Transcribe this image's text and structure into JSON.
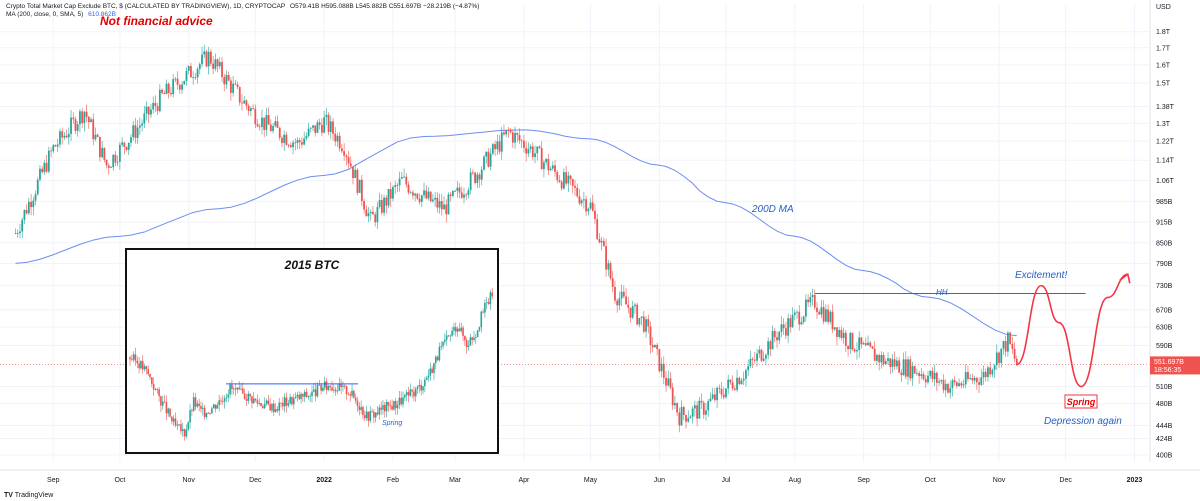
{
  "header": {
    "symbol": "Crypto Total Market Cap Exclude BTC, $ (CALCULATED BY TRADINGVIEW), 1D, CRYPTOCAP",
    "ohlc": "O579.41B H595.088B L545.882B C551.697B −28.219B (−4.87%)",
    "ma_line": "MA (200, close, 0, SMA, 5)",
    "ma_value": "610.862B"
  },
  "watermark": "TradingView",
  "chart_data": {
    "type": "candlestick",
    "currency": "USD",
    "price_scale": "log",
    "y_ticks": [
      "1.8T",
      "1.7T",
      "1.6T",
      "1.5T",
      "1.38T",
      "1.3T",
      "1.22T",
      "1.14T",
      "1.06T",
      "985B",
      "915B",
      "850B",
      "790B",
      "730B",
      "670B",
      "630B",
      "590B",
      "551.697B",
      "510B",
      "480B",
      "424B",
      "444B",
      "400B"
    ],
    "x_ticks": [
      "Sep",
      "Oct",
      "Nov",
      "Dec",
      "2022",
      "Feb",
      "Mar",
      "Apr",
      "May",
      "Jun",
      "Jul",
      "Aug",
      "Sep",
      "Oct",
      "Nov",
      "Dec",
      "2023"
    ],
    "last_price": "551.697B",
    "countdown": "18:56:35",
    "price_path": {
      "x": [
        "2021-08-15",
        "2021-09-01",
        "2021-09-15",
        "2021-09-25",
        "2021-10-05",
        "2021-10-20",
        "2021-11-01",
        "2021-11-10",
        "2021-11-25",
        "2021-12-05",
        "2021-12-20",
        "2022-01-01",
        "2022-01-10",
        "2022-01-22",
        "2022-02-05",
        "2022-02-15",
        "2022-02-24",
        "2022-03-10",
        "2022-03-25",
        "2022-04-05",
        "2022-04-15",
        "2022-05-01",
        "2022-05-12",
        "2022-05-25",
        "2022-06-10",
        "2022-06-20",
        "2022-07-10",
        "2022-07-25",
        "2022-08-10",
        "2022-08-25",
        "2022-09-10",
        "2022-09-25",
        "2022-10-10",
        "2022-10-25",
        "2022-11-05",
        "2022-11-09"
      ],
      "close": [
        880,
        1190,
        1360,
        1120,
        1230,
        1430,
        1550,
        1650,
        1410,
        1300,
        1210,
        1310,
        1200,
        920,
        1060,
        1000,
        960,
        1080,
        1260,
        1180,
        1090,
        970,
        710,
        640,
        460,
        470,
        540,
        620,
        690,
        600,
        560,
        540,
        510,
        530,
        600,
        551.7
      ]
    },
    "ma200": {
      "x": [
        "2021-08-15",
        "2021-10-01",
        "2021-11-15",
        "2022-01-01",
        "2022-02-15",
        "2022-04-01",
        "2022-05-01",
        "2022-06-01",
        "2022-07-01",
        "2022-08-01",
        "2022-09-01",
        "2022-10-01",
        "2022-11-09"
      ],
      "values": [
        790,
        870,
        960,
        1080,
        1240,
        1270,
        1230,
        1120,
        980,
        870,
        770,
        700,
        610.862
      ]
    },
    "hh_line": {
      "x_start": "2022-08-10",
      "x_end": "2022-12-10",
      "price": 710
    },
    "projection": {
      "x": [
        "2022-11-09",
        "2022-11-20",
        "2022-11-28",
        "2022-12-08",
        "2022-12-20",
        "2022-12-29"
      ],
      "price": [
        551.7,
        730,
        640,
        510,
        700,
        760
      ]
    },
    "inset": {
      "title": "2015 BTC",
      "hh_price_level": "range high",
      "close_series": [
        68,
        66,
        62,
        55,
        49,
        43,
        41,
        52,
        48,
        50,
        53,
        57,
        55,
        54,
        52,
        51,
        50,
        52,
        53,
        54,
        55,
        57,
        58,
        57,
        56,
        52,
        47,
        48,
        50,
        51,
        53,
        55,
        58,
        63,
        70,
        75,
        80,
        73,
        77,
        86,
        92
      ]
    },
    "annotations": {
      "not_financial_advice": "Not financial advice",
      "ma_label": "200D MA",
      "hh_label": "HH",
      "excitement": "Excitement!",
      "spring_main": "Spring",
      "depression": "Depression again",
      "spring_inset": "Spring"
    },
    "colors": {
      "up": "#26a69a",
      "down": "#ef5350",
      "ma": "#6b8ef2",
      "annot_red": "#e00000",
      "annot_blue": "#2660c9",
      "projection": "#f23645",
      "last_price_bg": "#ef5350"
    }
  }
}
